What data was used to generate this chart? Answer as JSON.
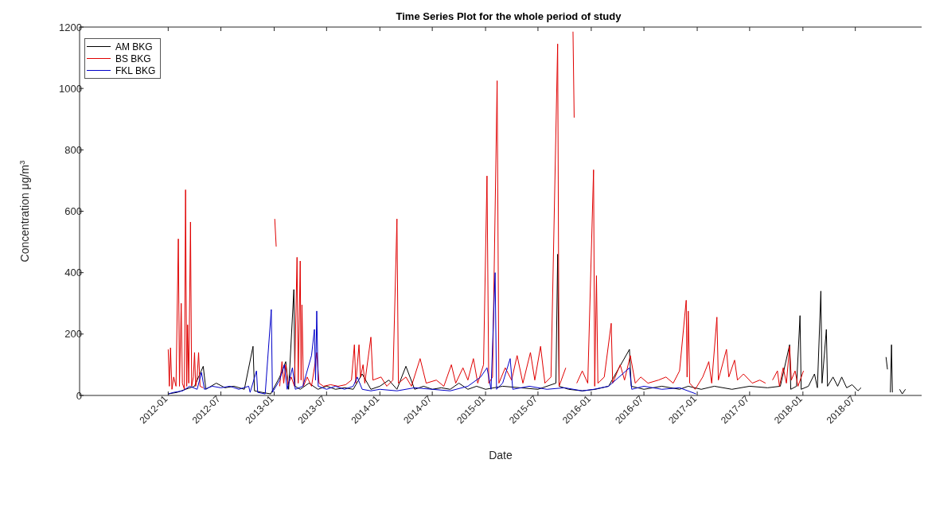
{
  "chart_data": {
    "type": "line",
    "title": "Time Series Plot for the whole period of study",
    "xlabel": "Date",
    "ylabel": "Concentration μg/m$^{3}$",
    "xlim": [
      "2011-03-01",
      "2019-02-15"
    ],
    "xticks": [
      "2012-01",
      "2012-07",
      "2013-01",
      "2013-07",
      "2014-01",
      "2014-07",
      "2015-01",
      "2015-07",
      "2016-01",
      "2016-07",
      "2017-01",
      "2017-07",
      "2018-01",
      "2018-07"
    ],
    "ylim": [
      0,
      1200
    ],
    "yticks": [
      0,
      200,
      400,
      600,
      800,
      1000,
      1200
    ],
    "legend": "top left",
    "marker": "none",
    "line_style": "solid",
    "series": [
      {
        "name": "AM BKG",
        "color": "#000000",
        "x": [
          "2012-01-01",
          "2012-02-01",
          "2012-03-01",
          "2012-04-01",
          "2012-05-01",
          "2012-05-10",
          "2012-06-15",
          "2012-07-15",
          "2012-08-15",
          "2012-09-20",
          "2012-10-20",
          "2012-10-25",
          "2012-11-20",
          "2012-12-20",
          "2013-01-20",
          "2013-02-10",
          "2013-02-20",
          "2013-03-10",
          "2013-03-14",
          "2013-04-01",
          "2013-05-01",
          "2013-06-01",
          "2013-07-01",
          "2013-08-01",
          "2013-09-01",
          "2013-10-01",
          "2013-11-01",
          "2013-12-01",
          "2014-01-01",
          "2014-02-01",
          "2014-03-01",
          "2014-04-01",
          "2014-05-01",
          "2014-06-01",
          "2014-07-01",
          "2014-08-01",
          "2014-09-01",
          "2014-10-01",
          "2014-11-01",
          "2014-12-01",
          "2015-01-01",
          "2015-03-01",
          "2015-05-01",
          "2015-07-01",
          "2015-09-01",
          "2015-09-07",
          "2015-09-12",
          "2015-10-15",
          "2015-12-01",
          "2016-01-15",
          "2016-03-01",
          "2016-05-12",
          "2016-05-18",
          "2016-07-01",
          "2016-09-01",
          "2016-11-01",
          "2016-12-01",
          "2017-01-15",
          "2017-03-01",
          "2017-05-01",
          "2017-07-01",
          "2017-09-01",
          "2017-10-15",
          "2017-11-16",
          "2017-11-20",
          "2017-12-10",
          "2017-12-22",
          "2017-12-26",
          "2018-01-20",
          "2018-02-10",
          "2018-02-20",
          "2018-03-04",
          "2018-03-08",
          "2018-03-23",
          "2018-03-27",
          "2018-04-15",
          "2018-05-01",
          "2018-05-15",
          "2018-06-01",
          "2018-06-20",
          "2018-07-10",
          "2018-07-21",
          "2018-08-01",
          "2018-10-15",
          "2018-10-20",
          "2018-10-25",
          "2018-10-30",
          "2018-11-03",
          "2018-11-06",
          "2018-11-20",
          "2018-12-01",
          "2018-12-10",
          "2018-12-21"
        ],
        "values": [
          5,
          10,
          20,
          30,
          95,
          20,
          40,
          25,
          30,
          20,
          160,
          15,
          10,
          5,
          60,
          110,
          20,
          345,
          30,
          20,
          40,
          20,
          30,
          20,
          25,
          20,
          70,
          20,
          30,
          50,
          20,
          95,
          20,
          30,
          20,
          25,
          20,
          40,
          20,
          30,
          20,
          30,
          25,
          20,
          40,
          460,
          30,
          20,
          15,
          20,
          30,
          150,
          30,
          20,
          30,
          20,
          30,
          20,
          30,
          20,
          30,
          25,
          30,
          165,
          20,
          30,
          260,
          20,
          30,
          70,
          25,
          340,
          40,
          215,
          30,
          60,
          30,
          60,
          25,
          35,
          15,
          25,
          null,
          125,
          85,
          null,
          10,
          165,
          10,
          null,
          20,
          5,
          20
        ]
      },
      {
        "name": "BS BKG",
        "color": "#e00000",
        "x": [
          "2012-01-01",
          "2012-01-05",
          "2012-01-09",
          "2012-01-14",
          "2012-01-20",
          "2012-01-28",
          "2012-02-05",
          "2012-02-09",
          "2012-02-15",
          "2012-02-19",
          "2012-02-26",
          "2012-03-01",
          "2012-03-05",
          "2012-03-08",
          "2012-03-12",
          "2012-03-18",
          "2012-03-22",
          "2012-03-28",
          "2012-04-01",
          "2012-04-05",
          "2012-04-10",
          "2012-04-15",
          "2012-04-20",
          "2012-05-01",
          "2012-06-01",
          "2013-01-03",
          "2013-01-08",
          "2013-01-15",
          "2013-01-20",
          "2013-01-28",
          "2013-02-03",
          "2013-02-10",
          "2013-02-18",
          "2013-03-01",
          "2013-03-12",
          "2013-03-21",
          "2013-03-25",
          "2013-04-01",
          "2013-04-04",
          "2013-04-07",
          "2013-04-12",
          "2013-04-25",
          "2013-05-10",
          "2013-05-28",
          "2013-06-05",
          "2013-06-20",
          "2013-07-15",
          "2013-08-10",
          "2013-09-05",
          "2013-09-25",
          "2013-10-05",
          "2013-10-10",
          "2013-10-21",
          "2013-10-26",
          "2013-11-04",
          "2013-11-10",
          "2013-12-01",
          "2013-12-08",
          "2014-01-05",
          "2014-01-25",
          "2014-02-15",
          "2014-03-01",
          "2014-03-06",
          "2014-04-01",
          "2014-04-20",
          "2014-05-20",
          "2014-06-10",
          "2014-07-15",
          "2014-08-10",
          "2014-09-05",
          "2014-09-20",
          "2014-10-15",
          "2014-11-01",
          "2014-11-20",
          "2014-12-05",
          "2014-12-25",
          "2015-01-06",
          "2015-01-12",
          "2015-01-25",
          "2015-02-10",
          "2015-02-16",
          "2015-03-10",
          "2015-04-01",
          "2015-04-20",
          "2015-05-10",
          "2015-06-05",
          "2015-06-20",
          "2015-07-10",
          "2015-07-25",
          "2015-08-15",
          "2015-09-07",
          "2015-09-12",
          "2015-10-05",
          "2015-10-25",
          "2015-10-30",
          "2015-11-03",
          "2015-11-08",
          "2015-11-12",
          "2015-12-01",
          "2015-12-20",
          "2016-01-09",
          "2016-01-13",
          "2016-01-19",
          "2016-01-24",
          "2016-02-15",
          "2016-03-10",
          "2016-03-15",
          "2016-04-10",
          "2016-04-25",
          "2016-05-15",
          "2016-06-01",
          "2016-06-20",
          "2016-07-15",
          "2016-08-20",
          "2016-09-15",
          "2016-10-10",
          "2016-11-01",
          "2016-11-24",
          "2016-11-27",
          "2016-12-01",
          "2016-12-06",
          "2016-12-25",
          "2017-01-20",
          "2017-02-10",
          "2017-02-20",
          "2017-03-10",
          "2017-03-15",
          "2017-04-12",
          "2017-04-20",
          "2017-05-10",
          "2017-05-20",
          "2017-06-10",
          "2017-07-10",
          "2017-08-05",
          "2017-08-25",
          "2017-09-05",
          "2017-09-18",
          "2017-10-05",
          "2017-10-12",
          "2017-10-25",
          "2017-11-05",
          "2017-11-16",
          "2017-11-22",
          "2017-12-05",
          "2017-12-15",
          "2018-01-03"
        ],
        "values": [
          150,
          30,
          155,
          20,
          60,
          30,
          510,
          30,
          300,
          40,
          20,
          670,
          30,
          230,
          40,
          565,
          30,
          60,
          140,
          30,
          60,
          140,
          30,
          25,
          null,
          575,
          485,
          null,
          30,
          110,
          40,
          100,
          35,
          60,
          30,
          450,
          40,
          438,
          50,
          295,
          30,
          60,
          30,
          140,
          40,
          30,
          35,
          30,
          35,
          50,
          165,
          40,
          165,
          60,
          100,
          40,
          190,
          50,
          60,
          30,
          50,
          575,
          40,
          60,
          30,
          120,
          40,
          50,
          30,
          100,
          40,
          90,
          50,
          120,
          40,
          100,
          715,
          40,
          60,
          1025,
          40,
          90,
          50,
          130,
          40,
          140,
          50,
          160,
          40,
          60,
          1145,
          30,
          90,
          null,
          1185,
          905,
          null,
          40,
          80,
          40,
          735,
          30,
          390,
          40,
          60,
          235,
          40,
          100,
          50,
          130,
          40,
          60,
          40,
          50,
          60,
          40,
          80,
          310,
          60,
          275,
          40,
          20,
          60,
          110,
          40,
          255,
          50,
          150,
          60,
          115,
          50,
          70,
          40,
          50,
          40,
          null,
          50,
          80,
          30,
          90,
          40,
          160,
          50,
          80,
          30,
          80
        ]
      },
      {
        "name": "FKL BKG",
        "color": "#0000c8",
        "x": [
          "2012-01-01",
          "2012-01-20",
          "2012-02-20",
          "2012-03-15",
          "2012-04-10",
          "2012-04-25",
          "2012-05-05",
          "2012-06-01",
          "2012-07-01",
          "2012-08-01",
          "2012-09-01",
          "2012-10-05",
          "2012-10-10",
          "2012-11-01",
          "2012-11-05",
          "2012-12-01",
          "2012-12-22",
          "2012-12-26",
          "2013-01-20",
          "2013-02-05",
          "2013-02-15",
          "2013-03-05",
          "2013-03-15",
          "2013-04-10",
          "2013-05-10",
          "2013-05-20",
          "2013-05-24",
          "2013-05-28",
          "2013-06-02",
          "2013-07-01",
          "2013-08-01",
          "2013-09-01",
          "2013-10-01",
          "2013-10-15",
          "2013-11-01",
          "2013-12-01",
          "2014-01-01",
          "2014-03-01",
          "2014-05-01",
          "2014-07-01",
          "2014-09-01",
          "2014-11-01",
          "2014-12-15",
          "2015-01-06",
          "2015-01-20",
          "2015-02-03",
          "2015-02-08",
          "2015-03-01",
          "2015-03-27",
          "2015-04-05",
          "2015-06-01",
          "2015-08-01",
          "2015-10-01",
          "2015-12-01",
          "2016-01-10",
          "2016-03-01",
          "2016-05-12",
          "2016-05-20",
          "2016-07-01",
          "2016-09-01",
          "2016-11-01",
          "2016-12-28"
        ],
        "values": [
          5,
          10,
          15,
          30,
          20,
          75,
          20,
          30,
          25,
          30,
          20,
          30,
          10,
          80,
          10,
          5,
          280,
          10,
          50,
          100,
          20,
          90,
          20,
          30,
          130,
          215,
          50,
          275,
          30,
          20,
          30,
          20,
          30,
          60,
          20,
          15,
          20,
          15,
          25,
          20,
          15,
          30,
          60,
          90,
          20,
          400,
          20,
          40,
          120,
          20,
          30,
          20,
          25,
          15,
          20,
          30,
          90,
          20,
          30,
          20,
          25,
          5
        ]
      }
    ]
  }
}
